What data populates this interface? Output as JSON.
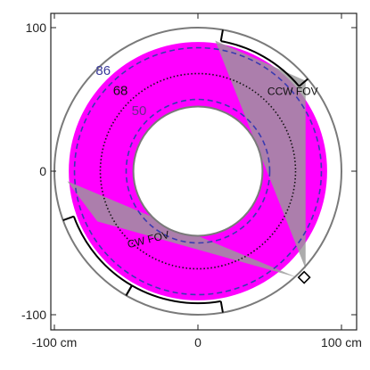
{
  "chart_data": {
    "type": "diagram",
    "x_range": [
      -105,
      105
    ],
    "y_range": [
      -105,
      105
    ],
    "x_ticks": [
      {
        "value": -100,
        "label": "-100 cm"
      },
      {
        "value": 0,
        "label": "0"
      },
      {
        "value": 100,
        "label": "100 cm"
      }
    ],
    "y_ticks": [
      {
        "value": 100,
        "label": "100"
      },
      {
        "value": 0,
        "label": "0"
      },
      {
        "value": -100,
        "label": "-100"
      }
    ],
    "circles": {
      "inner_boundary_radius": 45,
      "outer_boundary_radius": 100,
      "magenta_band": [
        30,
        90
      ],
      "dashed_radius_50": 50,
      "dotted_radius_68": 68,
      "dashed_radius_86": 86
    },
    "fov_wedges": [
      {
        "label": "CCW FOV",
        "points": [
          [
            12,
            91
          ],
          [
            75,
            63
          ],
          [
            75,
            -68
          ]
        ]
      },
      {
        "label": "CW FOV",
        "points": [
          [
            -91,
            -7
          ],
          [
            -70,
            -35
          ],
          [
            69,
            -74
          ]
        ]
      }
    ],
    "detector_arcs": [
      {
        "radius": 92,
        "start_angle": 40,
        "end_angle": 80,
        "connector_outer_radius": 100
      },
      {
        "radius": 92,
        "start_angle": 200,
        "end_angle": 240,
        "connector_outer_radius": 100
      },
      {
        "radius": 92,
        "start_angle": 240,
        "end_angle": 280,
        "connector_outer_radius": 100
      }
    ],
    "small_square_center": [
      74,
      -74
    ],
    "labels": {
      "r86": "86",
      "r68": "68",
      "r50": "50",
      "ccw": "CCW FOV",
      "cw": "CW FOV"
    },
    "label_positions": {
      "r86": [
        -66,
        67
      ],
      "r68": [
        -54,
        53
      ],
      "r50": [
        -41,
        39
      ],
      "ccw": [
        66,
        53
      ],
      "cw": [
        -34,
        -50
      ]
    },
    "colors": {
      "magenta": "#ff00ff",
      "wedge": "#9a9a9a",
      "dashed": "#3a3ab0",
      "dotted": "#111111",
      "boundary": "#7a7a7a",
      "label86": "#3a3a9a",
      "label50": "#6a2a8a",
      "frame": "#222222"
    }
  }
}
